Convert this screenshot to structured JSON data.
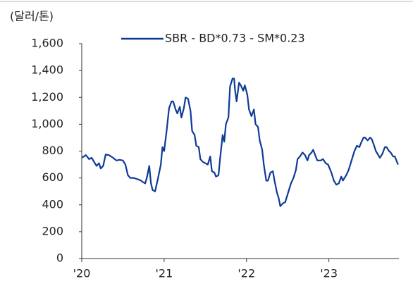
{
  "chart_data": {
    "type": "line",
    "y_axis_label": "(달러/톤)",
    "series": [
      {
        "name": "SBR - BD*0.73 - SM*0.23",
        "color": "#0f3a96",
        "x": [
          2020.0,
          2020.05,
          2020.09,
          2020.12,
          2020.15,
          2020.18,
          2020.21,
          2020.23,
          2020.26,
          2020.29,
          2020.33,
          2020.38,
          2020.42,
          2020.46,
          2020.5,
          2020.53,
          2020.56,
          2020.59,
          2020.63,
          2020.68,
          2020.72,
          2020.74,
          2020.77,
          2020.79,
          2020.82,
          2020.84,
          2020.86,
          2020.89,
          2020.92,
          2020.96,
          2020.98,
          2021.0,
          2021.03,
          2021.06,
          2021.09,
          2021.11,
          2021.14,
          2021.16,
          2021.19,
          2021.21,
          2021.24,
          2021.26,
          2021.29,
          2021.32,
          2021.34,
          2021.37,
          2021.39,
          2021.42,
          2021.44,
          2021.47,
          2021.5,
          2021.53,
          2021.56,
          2021.58,
          2021.61,
          2021.63,
          2021.66,
          2021.68,
          2021.71,
          2021.73,
          2021.75,
          2021.78,
          2021.8,
          2021.83,
          2021.85,
          2021.86,
          2021.88,
          2021.91,
          2021.93,
          2021.96,
          2021.98,
          2022.01,
          2022.03,
          2022.06,
          2022.09,
          2022.11,
          2022.14,
          2022.16,
          2022.19,
          2022.21,
          2022.24,
          2022.26,
          2022.29,
          2022.32,
          2022.34,
          2022.37,
          2022.39,
          2022.41,
          2022.44,
          2022.47,
          2022.5,
          2022.54,
          2022.57,
          2022.6,
          2022.62,
          2022.65,
          2022.68,
          2022.71,
          2022.74,
          2022.76,
          2022.79,
          2022.81,
          2022.84,
          2022.86,
          2022.9,
          2022.93,
          2022.96,
          2022.99,
          2023.03,
          2023.06,
          2023.09,
          2023.12,
          2023.15,
          2023.17,
          2023.21,
          2023.24,
          2023.27,
          2023.31,
          2023.34,
          2023.37,
          2023.39,
          2023.42,
          2023.44,
          2023.47,
          2023.5,
          2023.52,
          2023.55,
          2023.57,
          2023.6,
          2023.62,
          2023.65,
          2023.68,
          2023.7,
          2023.73,
          2023.75,
          2023.78,
          2023.8,
          2023.84
        ],
        "values": [
          750,
          770,
          740,
          750,
          720,
          690,
          710,
          670,
          690,
          775,
          770,
          750,
          730,
          735,
          730,
          700,
          620,
          600,
          600,
          590,
          580,
          570,
          560,
          600,
          690,
          560,
          510,
          500,
          580,
          700,
          830,
          800,
          950,
          1120,
          1170,
          1170,
          1110,
          1080,
          1130,
          1050,
          1120,
          1200,
          1190,
          1100,
          950,
          920,
          840,
          830,
          740,
          720,
          710,
          700,
          760,
          650,
          640,
          610,
          620,
          750,
          920,
          870,
          1000,
          1050,
          1280,
          1340,
          1340,
          1260,
          1170,
          1310,
          1290,
          1250,
          1290,
          1220,
          1110,
          1060,
          1110,
          1000,
          980,
          880,
          810,
          700,
          580,
          580,
          640,
          650,
          580,
          490,
          450,
          390,
          410,
          420,
          480,
          560,
          600,
          660,
          740,
          760,
          790,
          770,
          730,
          770,
          790,
          810,
          760,
          730,
          730,
          740,
          710,
          700,
          640,
          580,
          550,
          560,
          610,
          580,
          620,
          660,
          720,
          800,
          840,
          830,
          860,
          900,
          900,
          880,
          900,
          890,
          840,
          800,
          770,
          750,
          780,
          830,
          830,
          800,
          790,
          760,
          760,
          700
        ]
      }
    ],
    "xlim": [
      2020,
      2023.85
    ],
    "xticks": [
      {
        "value": 2020,
        "label": "'20"
      },
      {
        "value": 2021,
        "label": "'21"
      },
      {
        "value": 2022,
        "label": "'22"
      },
      {
        "value": 2023,
        "label": "'23"
      }
    ],
    "ylim": [
      0,
      1600
    ],
    "yticks": [
      0,
      200,
      400,
      600,
      800,
      {
        "value": 1000,
        "label": "1,000"
      },
      {
        "value": 1200,
        "label": "1,200"
      },
      {
        "value": 1400,
        "label": "1,400"
      },
      {
        "value": 1600,
        "label": "1,600"
      }
    ],
    "grid": false,
    "legend": "top"
  }
}
